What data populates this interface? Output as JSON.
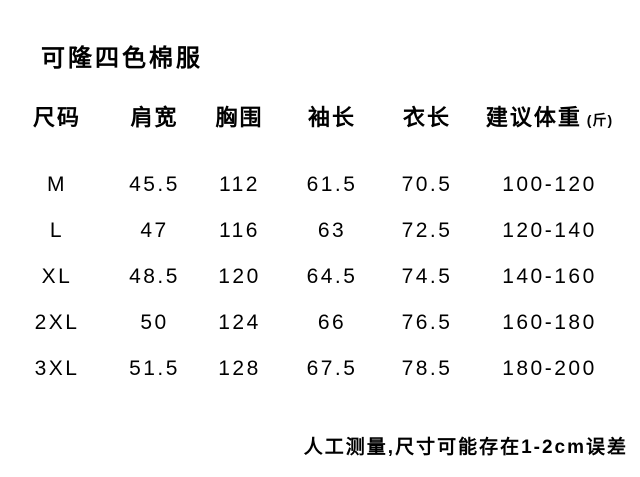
{
  "title": "可隆四色棉服",
  "table": {
    "columns": [
      {
        "key": "size",
        "label": "尺码"
      },
      {
        "key": "shoulder",
        "label": "肩宽"
      },
      {
        "key": "chest",
        "label": "胸围"
      },
      {
        "key": "sleeve",
        "label": "袖长"
      },
      {
        "key": "length",
        "label": "衣长"
      },
      {
        "key": "weight",
        "label": "建议体重",
        "unit": "(斤)"
      }
    ],
    "rows": [
      [
        "M",
        "45.5",
        "112",
        "61.5",
        "70.5",
        "100-120"
      ],
      [
        "L",
        "47",
        "116",
        "63",
        "72.5",
        "120-140"
      ],
      [
        "XL",
        "48.5",
        "120",
        "64.5",
        "74.5",
        "140-160"
      ],
      [
        "2XL",
        "50",
        "124",
        "66",
        "76.5",
        "160-180"
      ],
      [
        "3XL",
        "51.5",
        "128",
        "67.5",
        "78.5",
        "180-200"
      ]
    ]
  },
  "note": "人工测量,尺寸可能存在1-2cm误差",
  "colors": {
    "background": "#ffffff",
    "text": "#000000"
  }
}
